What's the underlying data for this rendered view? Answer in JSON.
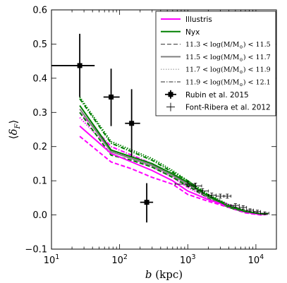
{
  "chart_data": {
    "type": "line",
    "xscale": "log",
    "xlim": [
      10,
      20000
    ],
    "ylim": [
      -0.1,
      0.6
    ],
    "xlabel": "b (kpc)",
    "ylabel": "⟨δ_F⟩",
    "x_ticks": [
      {
        "value": 10,
        "base": "10",
        "exp": "1"
      },
      {
        "value": 100,
        "base": "10",
        "exp": "2"
      },
      {
        "value": 1000,
        "base": "10",
        "exp": "3"
      },
      {
        "value": 10000,
        "base": "10",
        "exp": "4"
      }
    ],
    "y_ticks": [
      "−0.1",
      "0.0",
      "0.1",
      "0.2",
      "0.3",
      "0.4",
      "0.5",
      "0.6"
    ],
    "legend_position": "top-right",
    "series": [
      {
        "name": "Illustris",
        "color": "#ff00ff",
        "style": "solid",
        "width": 2,
        "x": [
          26,
          75,
          150,
          300,
          600,
          1000,
          2000,
          4000,
          7000,
          12000,
          15000
        ],
        "values": [
          0.26,
          0.18,
          0.155,
          0.13,
          0.1,
          0.07,
          0.045,
          0.025,
          0.008,
          0.001,
          0.003
        ]
      },
      {
        "name": "Nyx",
        "color": "#008000",
        "style": "solid",
        "width": 2,
        "x": [
          26,
          75,
          150,
          300,
          600,
          1000,
          2000,
          4000,
          7000,
          12000,
          15000
        ],
        "values": [
          0.32,
          0.19,
          0.17,
          0.15,
          0.12,
          0.095,
          0.055,
          0.025,
          0.01,
          0.003,
          0.003
        ]
      },
      {
        "name": "11.3 < log(M/M⊙) < 11.5",
        "legend_parts": [
          "11.3 < log(M/M",
          "⊙",
          ") < 11.5"
        ],
        "color": "#555555",
        "style": "dashed",
        "width": 1.2,
        "x": [],
        "values": []
      },
      {
        "name": "11.5 < log(M/M⊙) < 11.7",
        "legend_parts": [
          "11.5 < log(M/M",
          "⊙",
          ") < 11.7"
        ],
        "color": "#808080",
        "style": "solid",
        "width": 2,
        "x": [],
        "values": []
      },
      {
        "name": "11.7 < log(M/M⊙) < 11.9",
        "legend_parts": [
          "11.7 < log(M/M",
          "⊙",
          ") < 11.9"
        ],
        "color": "#999999",
        "style": "dotted",
        "width": 1.2,
        "x": [],
        "values": []
      },
      {
        "name": "11.9 < log(M/M⊙) < 12.1",
        "legend_parts": [
          "11.9 < log(M/M",
          "⊙",
          ") < 12.1"
        ],
        "color": "#555555",
        "style": "dashdot",
        "width": 1.2,
        "x": [],
        "values": []
      }
    ],
    "model_lines": [
      {
        "color": "#ff00ff",
        "style": "dashed",
        "width": 2,
        "x": [
          26,
          75,
          150,
          300,
          600,
          1000,
          2000,
          4000,
          7000,
          12000,
          15000
        ],
        "values": [
          0.23,
          0.155,
          0.135,
          0.11,
          0.09,
          0.06,
          0.04,
          0.022,
          0.006,
          0.0,
          0.002
        ]
      },
      {
        "color": "#ff00ff",
        "style": "dotted",
        "width": 2,
        "x": [
          26,
          75,
          150,
          300,
          600,
          1000,
          2000,
          4000,
          7000,
          12000,
          15000
        ],
        "values": [
          0.285,
          0.19,
          0.165,
          0.14,
          0.11,
          0.08,
          0.05,
          0.028,
          0.01,
          0.002,
          0.003
        ]
      },
      {
        "color": "#ff00ff",
        "style": "dashdot",
        "width": 2,
        "x": [
          26,
          75,
          150,
          300,
          600,
          1000,
          2000,
          4000,
          7000,
          12000,
          15000
        ],
        "values": [
          0.3,
          0.2,
          0.175,
          0.15,
          0.12,
          0.09,
          0.055,
          0.03,
          0.012,
          0.003,
          0.004
        ]
      },
      {
        "color": "#008000",
        "style": "dashed",
        "width": 2,
        "x": [
          26,
          75,
          150,
          300,
          600,
          1000,
          2000,
          4000,
          7000,
          12000,
          15000
        ],
        "values": [
          0.3,
          0.175,
          0.16,
          0.14,
          0.11,
          0.085,
          0.05,
          0.022,
          0.008,
          0.002,
          0.003
        ]
      },
      {
        "color": "#008000",
        "style": "dotted",
        "width": 2,
        "x": [
          26,
          75,
          150,
          300,
          600,
          1000,
          2000,
          4000,
          7000,
          12000,
          15000
        ],
        "values": [
          0.345,
          0.215,
          0.19,
          0.165,
          0.13,
          0.1,
          0.06,
          0.03,
          0.012,
          0.003,
          0.004
        ]
      },
      {
        "color": "#008000",
        "style": "dashdot",
        "width": 2,
        "x": [
          26,
          75,
          150,
          300,
          600,
          1000,
          2000,
          4000,
          7000,
          12000,
          15000
        ],
        "values": [
          0.34,
          0.21,
          0.185,
          0.16,
          0.125,
          0.1,
          0.058,
          0.028,
          0.011,
          0.003,
          0.004
        ]
      },
      {
        "color": "#808080",
        "style": "solid",
        "width": 2,
        "x": [
          26,
          75,
          150,
          300,
          600,
          1000,
          2000,
          4000,
          7000,
          12000,
          15000
        ],
        "values": [
          0.31,
          0.185,
          0.165,
          0.145,
          0.115,
          0.09,
          0.052,
          0.025,
          0.009,
          0.002,
          0.003
        ]
      }
    ],
    "observations": [
      {
        "name": "Rubin et al. 2015",
        "marker": "square",
        "color": "#000000",
        "points": [
          {
            "x": 26,
            "y": 0.437,
            "xlo": 10,
            "xhi": 43,
            "ylo": 0.345,
            "yhi": 0.53
          },
          {
            "x": 75,
            "y": 0.345,
            "xlo": 58,
            "xhi": 100,
            "ylo": 0.26,
            "yhi": 0.428
          },
          {
            "x": 150,
            "y": 0.268,
            "xlo": 120,
            "xhi": 200,
            "ylo": 0.17,
            "yhi": 0.368
          },
          {
            "x": 250,
            "y": 0.037,
            "xlo": 200,
            "xhi": 310,
            "ylo": -0.022,
            "yhi": 0.093
          }
        ]
      },
      {
        "name": "Font-Ribera et al. 2012",
        "marker": "cross",
        "color": "#000000",
        "points": [
          {
            "x": 1000,
            "y": 0.09,
            "xlo": 650,
            "xhi": 1300,
            "ylo": 0.082,
            "yhi": 0.098
          },
          {
            "x": 1300,
            "y": 0.085,
            "xlo": 1050,
            "xhi": 1600,
            "ylo": 0.077,
            "yhi": 0.093
          },
          {
            "x": 1650,
            "y": 0.07,
            "xlo": 1400,
            "xhi": 2000,
            "ylo": 0.063,
            "yhi": 0.077
          },
          {
            "x": 2250,
            "y": 0.058,
            "xlo": 2000,
            "xhi": 2600,
            "ylo": 0.052,
            "yhi": 0.064
          },
          {
            "x": 3000,
            "y": 0.055,
            "xlo": 2600,
            "xhi": 3400,
            "ylo": 0.049,
            "yhi": 0.061
          },
          {
            "x": 3800,
            "y": 0.055,
            "xlo": 3400,
            "xhi": 4300,
            "ylo": 0.049,
            "yhi": 0.061
          },
          {
            "x": 5000,
            "y": 0.028,
            "xlo": 4300,
            "xhi": 5700,
            "ylo": 0.023,
            "yhi": 0.033
          },
          {
            "x": 6500,
            "y": 0.022,
            "xlo": 5700,
            "xhi": 7300,
            "ylo": 0.017,
            "yhi": 0.027
          },
          {
            "x": 8200,
            "y": 0.014,
            "xlo": 7300,
            "xhi": 9200,
            "ylo": 0.01,
            "yhi": 0.018
          },
          {
            "x": 10500,
            "y": 0.01,
            "xlo": 9200,
            "xhi": 11700,
            "ylo": 0.006,
            "yhi": 0.014
          },
          {
            "x": 13500,
            "y": 0.005,
            "xlo": 11700,
            "xhi": 15500,
            "ylo": 0.001,
            "yhi": 0.009
          }
        ]
      }
    ]
  }
}
